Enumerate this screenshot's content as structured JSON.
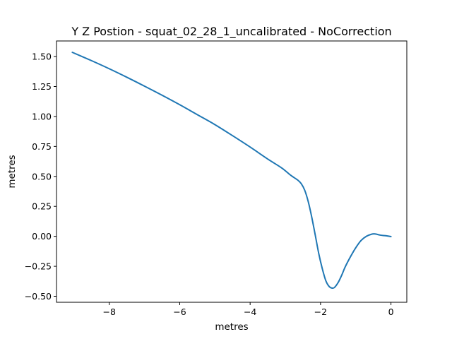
{
  "chart_data": {
    "type": "line",
    "title": "Y Z Postion - squat_02_28_1_uncalibrated - NoCorrection",
    "xlabel": "metres",
    "ylabel": "metres",
    "xlim": [
      -9.5,
      0.45
    ],
    "ylim": [
      -0.55,
      1.63
    ],
    "grid": false,
    "x_ticks": [
      {
        "value": -8,
        "label": "−8"
      },
      {
        "value": -6,
        "label": "−6"
      },
      {
        "value": -4,
        "label": "−4"
      },
      {
        "value": -2,
        "label": "−2"
      },
      {
        "value": 0,
        "label": "0"
      }
    ],
    "y_ticks": [
      {
        "value": 1.5,
        "label": "1.50"
      },
      {
        "value": 1.25,
        "label": "1.25"
      },
      {
        "value": 1.0,
        "label": "1.00"
      },
      {
        "value": 0.75,
        "label": "0.75"
      },
      {
        "value": 0.5,
        "label": "0.50"
      },
      {
        "value": 0.25,
        "label": "0.25"
      },
      {
        "value": 0.0,
        "label": "0.00"
      },
      {
        "value": -0.25,
        "label": "−0.25"
      },
      {
        "value": -0.5,
        "label": "−0.50"
      }
    ],
    "series": [
      {
        "color": "#1f77b4",
        "x": [
          -9.05,
          -8.5,
          -8.0,
          -7.5,
          -7.0,
          -6.5,
          -6.0,
          -5.5,
          -5.0,
          -4.5,
          -4.0,
          -3.5,
          -3.1,
          -2.85,
          -2.65,
          -2.55,
          -2.45,
          -2.35,
          -2.25,
          -2.15,
          -2.05,
          -1.95,
          -1.85,
          -1.75,
          -1.66,
          -1.6,
          -1.5,
          -1.4,
          -1.3,
          -1.15,
          -1.0,
          -0.85,
          -0.7,
          -0.55,
          -0.45,
          -0.3,
          -0.15,
          0.0
        ],
        "y": [
          1.535,
          1.465,
          1.398,
          1.327,
          1.253,
          1.177,
          1.098,
          1.015,
          0.932,
          0.84,
          0.745,
          0.645,
          0.57,
          0.51,
          0.47,
          0.44,
          0.385,
          0.29,
          0.16,
          0.01,
          -0.145,
          -0.27,
          -0.37,
          -0.42,
          -0.432,
          -0.425,
          -0.385,
          -0.325,
          -0.255,
          -0.17,
          -0.095,
          -0.035,
          0.0,
          0.018,
          0.02,
          0.01,
          0.005,
          -0.002
        ]
      }
    ]
  }
}
